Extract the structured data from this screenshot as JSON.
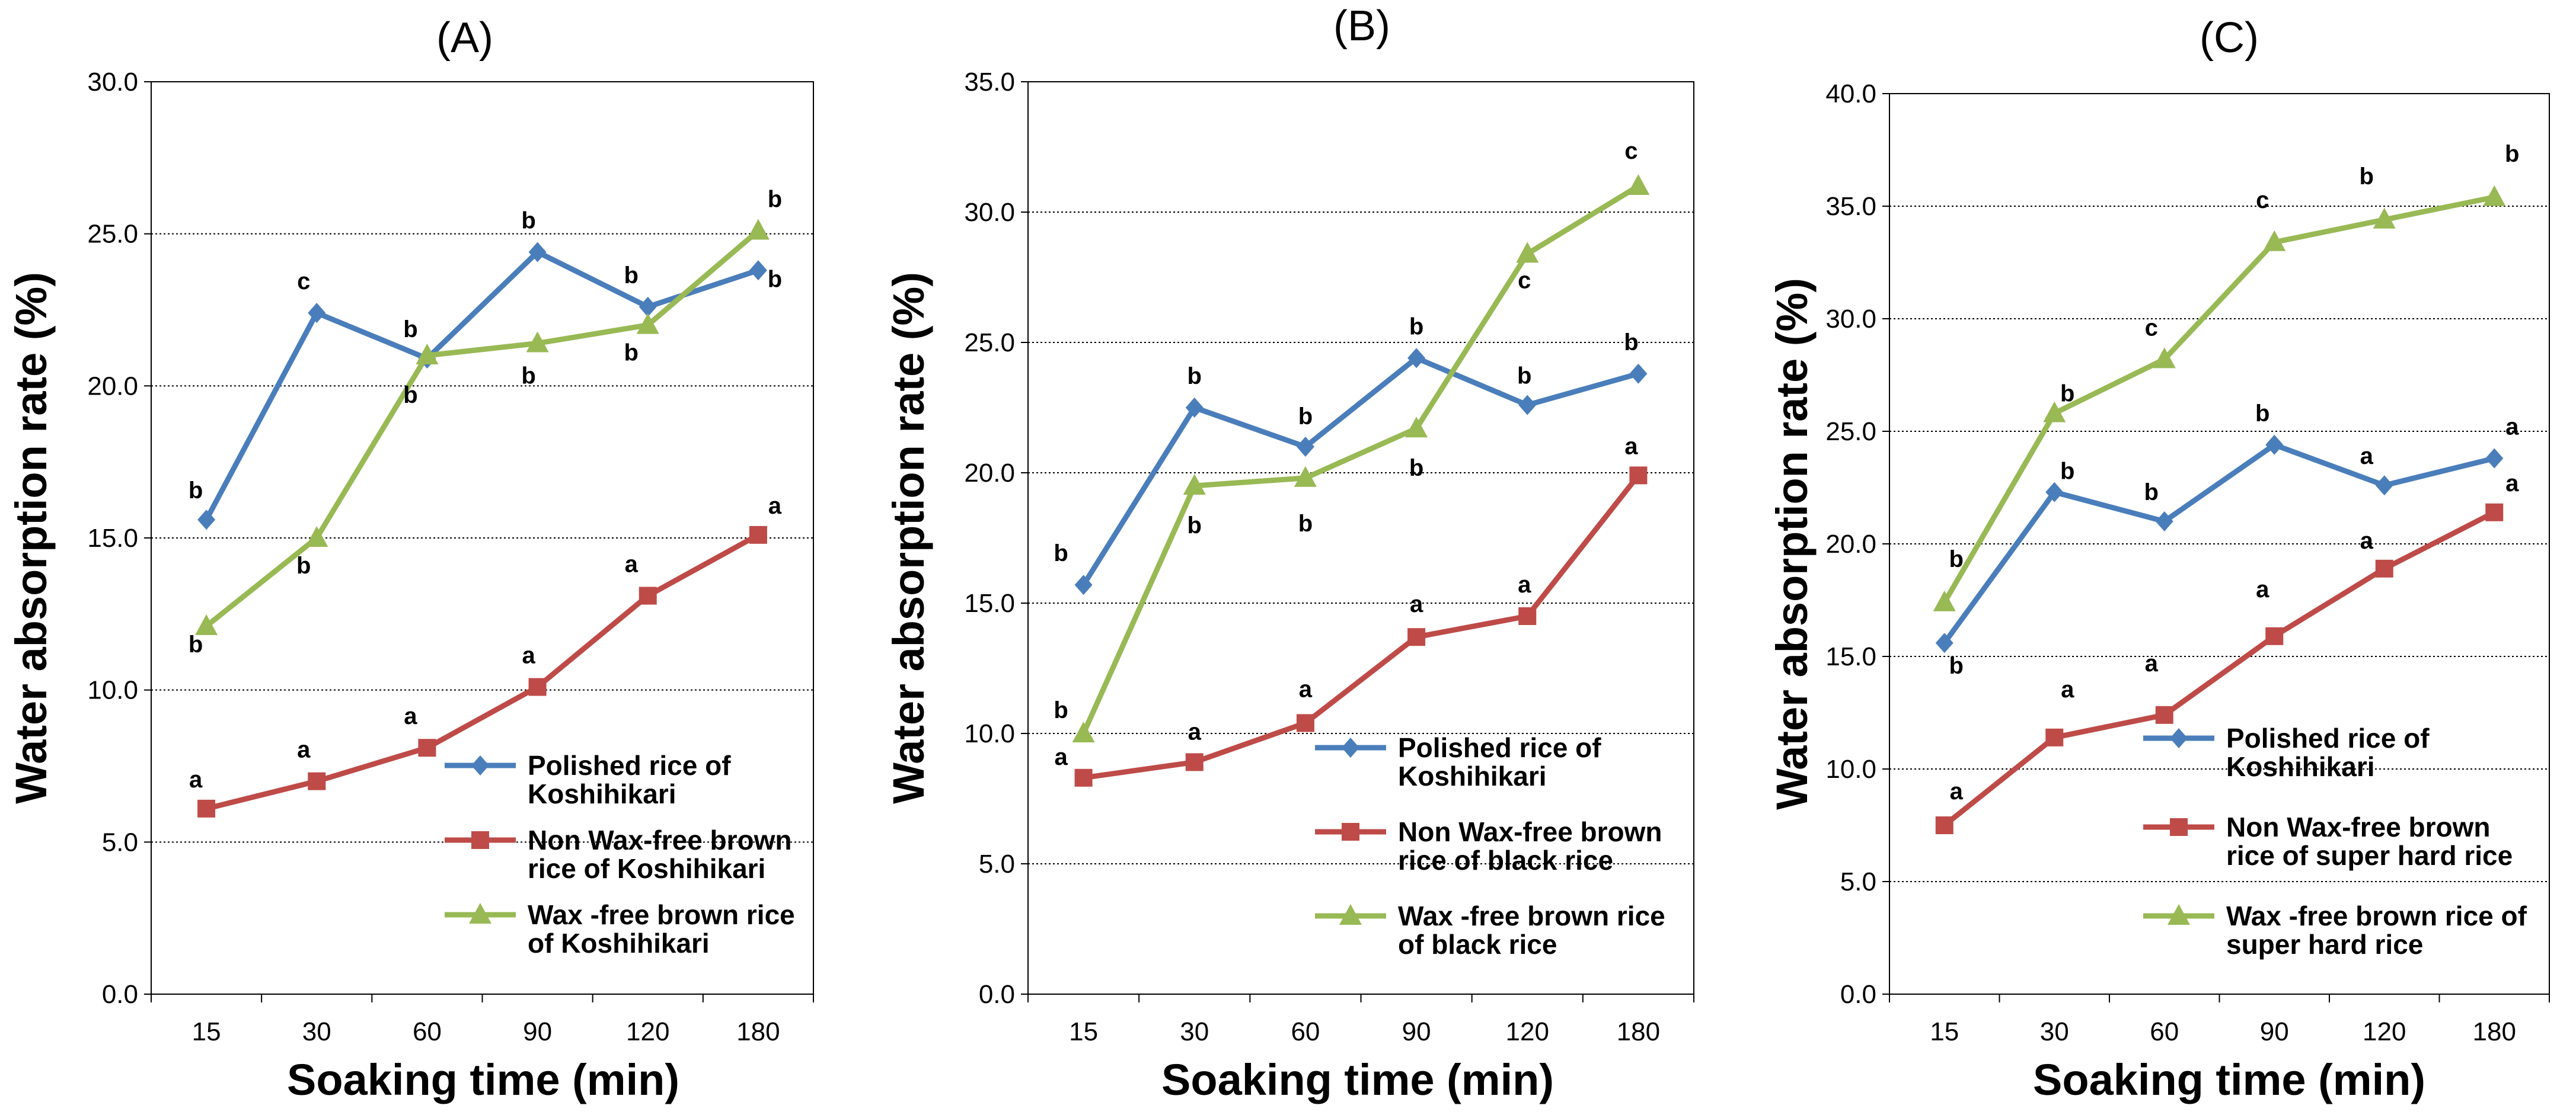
{
  "chart_data": [
    {
      "type": "line",
      "title": "(A)",
      "xlabel": "Soaking time (min)",
      "ylabel": "Water absorption rate (%)",
      "ylim": [
        0,
        30
      ],
      "yticks": [
        "0.0",
        "5.0",
        "10.0",
        "15.0",
        "20.0",
        "25.0",
        "30.0"
      ],
      "categories": [
        "15",
        "30",
        "60",
        "90",
        "120",
        "180"
      ],
      "series": [
        {
          "name": "Polished rice of Koshihikari",
          "legend_lines": [
            "Polished rice of",
            "Koshihikari"
          ],
          "color": "#4a7ebb",
          "marker": "diamond",
          "values": [
            15.6,
            22.4,
            20.9,
            24.4,
            22.6,
            23.8
          ],
          "labels": [
            "b",
            "c",
            "b",
            "b",
            "b",
            "b"
          ]
        },
        {
          "name": "Non Wax-free brown rice of Koshihikari",
          "legend_lines": [
            "Non Wax-free brown",
            "rice of Koshihikari"
          ],
          "color": "#be4b48",
          "marker": "square",
          "values": [
            6.1,
            7.0,
            8.1,
            10.1,
            13.1,
            15.1
          ],
          "labels": [
            "a",
            "a",
            "a",
            "a",
            "a",
            "a"
          ]
        },
        {
          "name": "Wax -free brown rice of Koshihikari",
          "legend_lines": [
            "Wax -free brown rice",
            "of Koshihikari"
          ],
          "color": "#98b954",
          "marker": "triangle",
          "values": [
            12.1,
            15.0,
            21.0,
            21.4,
            22.0,
            25.1
          ],
          "labels": [
            "b",
            "b",
            "b",
            "b",
            "b",
            "b"
          ]
        }
      ]
    },
    {
      "type": "line",
      "title": "(B)",
      "xlabel": "Soaking time (min)",
      "ylabel": "Water absorption rate (%)",
      "ylim": [
        0,
        35
      ],
      "yticks": [
        "0.0",
        "5.0",
        "10.0",
        "15.0",
        "20.0",
        "25.0",
        "30.0",
        "35.0"
      ],
      "categories": [
        "15",
        "30",
        "60",
        "90",
        "120",
        "180"
      ],
      "series": [
        {
          "name": "Polished rice of Koshihikari",
          "legend_lines": [
            "Polished rice of",
            "Koshihikari"
          ],
          "color": "#4a7ebb",
          "marker": "diamond",
          "values": [
            15.7,
            22.5,
            21.0,
            24.4,
            22.6,
            23.8
          ],
          "labels": [
            "b",
            "b",
            "b",
            "b",
            "b",
            "b"
          ]
        },
        {
          "name": "Non Wax-free brown rice of black rice",
          "legend_lines": [
            "Non Wax-free brown",
            "rice of black rice"
          ],
          "color": "#be4b48",
          "marker": "square",
          "values": [
            8.3,
            8.9,
            10.4,
            13.7,
            14.5,
            19.9
          ],
          "labels": [
            "a",
            "a",
            "a",
            "a",
            "a",
            "a"
          ]
        },
        {
          "name": "Wax -free brown rice of black rice",
          "legend_lines": [
            "Wax -free brown rice",
            "of black rice"
          ],
          "color": "#98b954",
          "marker": "triangle",
          "values": [
            10.0,
            19.5,
            19.8,
            21.7,
            28.4,
            31.0
          ],
          "labels": [
            "b",
            "b",
            "b",
            "b",
            "c",
            "c"
          ]
        }
      ]
    },
    {
      "type": "line",
      "title": "(C)",
      "xlabel": "Soaking time (min)",
      "ylabel": "Water absorption rate (%)",
      "ylim": [
        0,
        40
      ],
      "yticks": [
        "0.0",
        "5.0",
        "10.0",
        "15.0",
        "20.0",
        "25.0",
        "30.0",
        "35.0",
        "40.0"
      ],
      "categories": [
        "15",
        "30",
        "60",
        "90",
        "120",
        "180"
      ],
      "series": [
        {
          "name": "Polished rice of Koshihikari",
          "legend_lines": [
            "Polished rice of",
            "Koshihikari"
          ],
          "color": "#4a7ebb",
          "marker": "diamond",
          "values": [
            15.6,
            22.3,
            21.0,
            24.4,
            22.6,
            23.8
          ],
          "labels": [
            "b",
            "b",
            "b",
            "b",
            "a",
            "a"
          ]
        },
        {
          "name": "Non Wax-free brown rice of super hard rice",
          "legend_lines": [
            "Non Wax-free brown",
            "rice of super hard rice"
          ],
          "color": "#be4b48",
          "marker": "square",
          "values": [
            7.5,
            11.4,
            12.4,
            15.9,
            18.9,
            21.4
          ],
          "labels": [
            "a",
            "a",
            "a",
            "a",
            "a",
            "a"
          ]
        },
        {
          "name": "Wax -free brown rice of super hard rice",
          "legend_lines": [
            "Wax -free brown rice of",
            "super hard rice"
          ],
          "color": "#98b954",
          "marker": "triangle",
          "values": [
            17.4,
            25.8,
            28.2,
            33.4,
            34.4,
            35.4
          ],
          "labels": [
            "b",
            "b",
            "c",
            "c",
            "b",
            "b"
          ]
        }
      ]
    }
  ]
}
